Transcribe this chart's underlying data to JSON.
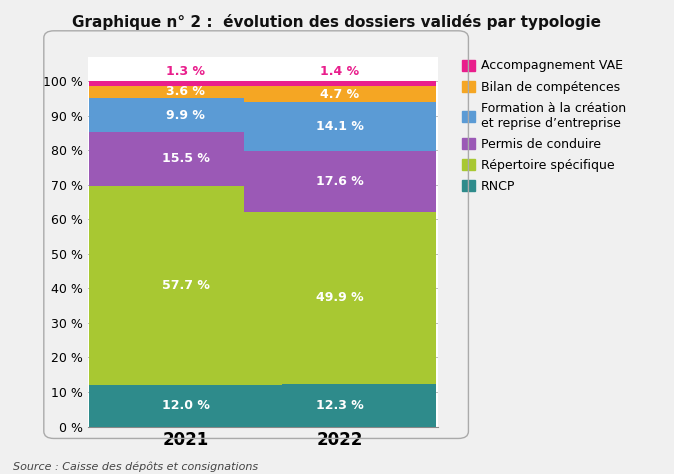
{
  "title": "Graphique n° 2 :  évolution des dossiers validés par typologie",
  "source": "Source : Caisse des dépôts et consignations",
  "categories": [
    "2021",
    "2022"
  ],
  "series": [
    {
      "label": "RNCP",
      "color": "#2e8b8b",
      "values": [
        12.0,
        12.3
      ],
      "txt_color": "#ffffff"
    },
    {
      "label": "Répertoire spécifique",
      "color": "#a8c832",
      "values": [
        57.7,
        49.9
      ],
      "txt_color": "#ffffff"
    },
    {
      "label": "Permis de conduire",
      "color": "#9b59b6",
      "values": [
        15.5,
        17.6
      ],
      "txt_color": "#ffffff"
    },
    {
      "label": "Formation à la création\net reprise d’entreprise",
      "color": "#5b9bd5",
      "values": [
        9.9,
        14.1
      ],
      "txt_color": "#ffffff"
    },
    {
      "label": "Bilan de compétences",
      "color": "#f5a623",
      "values": [
        3.6,
        4.7
      ],
      "txt_color": "#ffffff"
    },
    {
      "label": "Accompagnement VAE",
      "color": "#e91e8c",
      "values": [
        1.3,
        1.4
      ],
      "txt_color": "#e91e8c"
    }
  ],
  "bar_width": 0.55,
  "bar_positions": [
    0.28,
    0.72
  ],
  "xlim": [
    0.0,
    1.0
  ],
  "ylim": [
    0,
    107
  ],
  "yticks": [
    0,
    10,
    20,
    30,
    40,
    50,
    60,
    70,
    80,
    90,
    100
  ],
  "ytick_labels": [
    "0 %",
    "10 %",
    "20 %",
    "30 %",
    "40 %",
    "50 %",
    "60 %",
    "70 %",
    "80 %",
    "90 %",
    "100 %"
  ],
  "background_color": "#f0f0f0",
  "panel_color": "#ffffff",
  "grid_color": "#bbbbbb",
  "label_fontsize": 9,
  "title_fontsize": 11,
  "legend_fontsize": 9,
  "xtick_fontsize": 12,
  "ytick_fontsize": 9
}
